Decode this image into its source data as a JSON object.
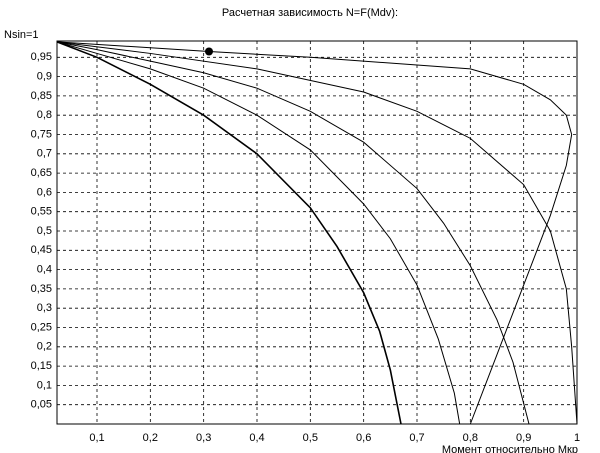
{
  "chart_data": {
    "type": "line",
    "title": "Расчетная зависимость N=F(Mdv):",
    "y_label": "Nsin=1",
    "x_label": "Момент относительно Мкр",
    "xlim": [
      0.025,
      1
    ],
    "ylim": [
      0,
      1
    ],
    "grid": true,
    "color": "#000000",
    "xticks": [
      {
        "value": 0.1,
        "label": "0,1"
      },
      {
        "value": 0.2,
        "label": "0,2"
      },
      {
        "value": 0.3,
        "label": "0,3"
      },
      {
        "value": 0.4,
        "label": "0,4"
      },
      {
        "value": 0.5,
        "label": "0,5"
      },
      {
        "value": 0.6,
        "label": "0,6"
      },
      {
        "value": 0.7,
        "label": "0,7"
      },
      {
        "value": 0.8,
        "label": "0,8"
      },
      {
        "value": 0.9,
        "label": "0,9"
      },
      1
    ],
    "yticks": [
      {
        "value": 0.05,
        "label": "0,05"
      },
      {
        "value": 0.1,
        "label": "0,1"
      },
      {
        "value": 0.15,
        "label": "0,15"
      },
      {
        "value": 0.2,
        "label": "0,2"
      },
      {
        "value": 0.25,
        "label": "0,25"
      },
      {
        "value": 0.3,
        "label": "0,3"
      },
      {
        "value": 0.35,
        "label": "0,35"
      },
      {
        "value": 0.4,
        "label": "0,4"
      },
      {
        "value": 0.45,
        "label": "0,45"
      },
      {
        "value": 0.5,
        "label": "0,5"
      },
      {
        "value": 0.55,
        "label": "0,55"
      },
      {
        "value": 0.6,
        "label": "0,6"
      },
      {
        "value": 0.65,
        "label": "0,65"
      },
      {
        "value": 0.7,
        "label": "0,7"
      },
      {
        "value": 0.75,
        "label": "0,75"
      },
      {
        "value": 0.8,
        "label": "0,8"
      },
      {
        "value": 0.85,
        "label": "0,85"
      },
      {
        "value": 0.9,
        "label": "0,9"
      },
      {
        "value": 0.95,
        "label": "0,95"
      }
    ],
    "series": [
      {
        "line_width": 1.6,
        "x": [
          0.025,
          0.1,
          0.2,
          0.3,
          0.4,
          0.5,
          0.55,
          0.6,
          0.63,
          0.65,
          0.67
        ],
        "values": [
          0.99,
          0.95,
          0.88,
          0.8,
          0.7,
          0.56,
          0.46,
          0.34,
          0.24,
          0.14,
          0
        ]
      },
      {
        "line_width": 1,
        "x": [
          0.025,
          0.1,
          0.2,
          0.3,
          0.4,
          0.5,
          0.6,
          0.65,
          0.7,
          0.74,
          0.77,
          0.78
        ],
        "values": [
          0.99,
          0.96,
          0.92,
          0.87,
          0.8,
          0.71,
          0.57,
          0.48,
          0.36,
          0.22,
          0.08,
          0
        ]
      },
      {
        "line_width": 1,
        "x": [
          0.025,
          0.1,
          0.2,
          0.3,
          0.4,
          0.5,
          0.6,
          0.7,
          0.75,
          0.8,
          0.85,
          0.88,
          0.91
        ],
        "values": [
          0.99,
          0.97,
          0.94,
          0.91,
          0.87,
          0.81,
          0.73,
          0.61,
          0.52,
          0.41,
          0.27,
          0.16,
          0
        ]
      },
      {
        "line_width": 1,
        "x": [
          0.025,
          0.2,
          0.4,
          0.6,
          0.7,
          0.8,
          0.9,
          0.95,
          0.98,
          0.99,
          1.0
        ],
        "values": [
          0.99,
          0.96,
          0.92,
          0.86,
          0.81,
          0.74,
          0.62,
          0.5,
          0.35,
          0.2,
          0
        ]
      },
      {
        "line_width": 1,
        "x": [
          0.025,
          0.31,
          0.5,
          0.7,
          0.8,
          0.9,
          0.95,
          0.98,
          0.99
        ],
        "values": [
          0.99,
          0.965,
          0.95,
          0.93,
          0.92,
          0.88,
          0.84,
          0.8,
          0.75
        ]
      },
      {
        "line_width": 1,
        "x": [
          0.8,
          0.85,
          0.9,
          0.95,
          0.98,
          0.99
        ],
        "values": [
          0,
          0.18,
          0.36,
          0.54,
          0.67,
          0.75
        ]
      }
    ],
    "marker": {
      "x": 0.31,
      "value": 0.965
    }
  }
}
